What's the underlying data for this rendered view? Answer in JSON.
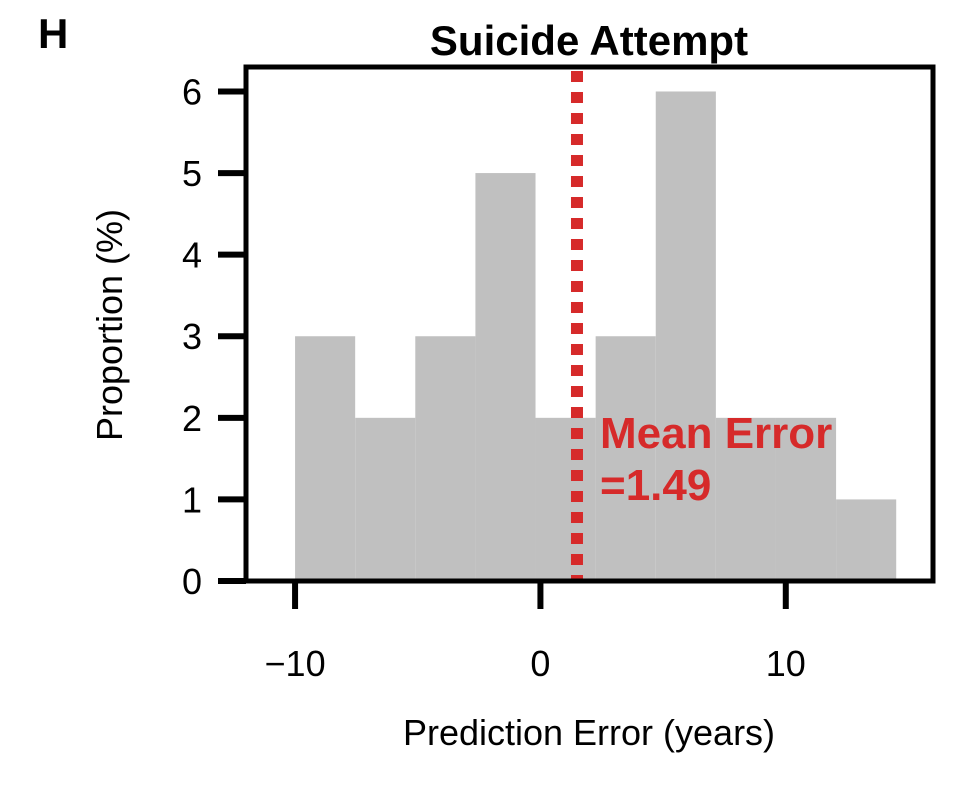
{
  "panel_label": "H",
  "chart_data": {
    "type": "bar",
    "title": "Suicide Attempt",
    "xlabel": "Prediction Error (years)",
    "ylabel": "Proportion (%)",
    "xlim": [
      -12,
      16
    ],
    "ylim": [
      0,
      6.3
    ],
    "x_ticks": [
      -10,
      0,
      10
    ],
    "x_tick_labels": [
      "−10",
      "0",
      "10"
    ],
    "y_ticks": [
      0,
      1,
      2,
      3,
      4,
      5,
      6
    ],
    "y_tick_labels": [
      "0",
      "1",
      "2",
      "3",
      "4",
      "5",
      "6"
    ],
    "bins": [
      {
        "x0": -10.0,
        "x1": -7.55,
        "value": 3
      },
      {
        "x0": -7.55,
        "x1": -5.1,
        "value": 2
      },
      {
        "x0": -5.1,
        "x1": -2.65,
        "value": 3
      },
      {
        "x0": -2.65,
        "x1": -0.2,
        "value": 5
      },
      {
        "x0": -0.2,
        "x1": 2.25,
        "value": 2
      },
      {
        "x0": 2.25,
        "x1": 4.7,
        "value": 3
      },
      {
        "x0": 4.7,
        "x1": 7.15,
        "value": 6
      },
      {
        "x0": 7.15,
        "x1": 9.6,
        "value": 2
      },
      {
        "x0": 9.6,
        "x1": 12.05,
        "value": 2
      },
      {
        "x0": 12.05,
        "x1": 14.5,
        "value": 1
      }
    ],
    "mean_error": 1.49,
    "annotation": {
      "line1": "Mean Error",
      "line2": "=1.49"
    },
    "grid": false,
    "colors": {
      "bars": "#c0c0c0",
      "mean_line": "#d62a2a",
      "axes": "#000000"
    }
  }
}
